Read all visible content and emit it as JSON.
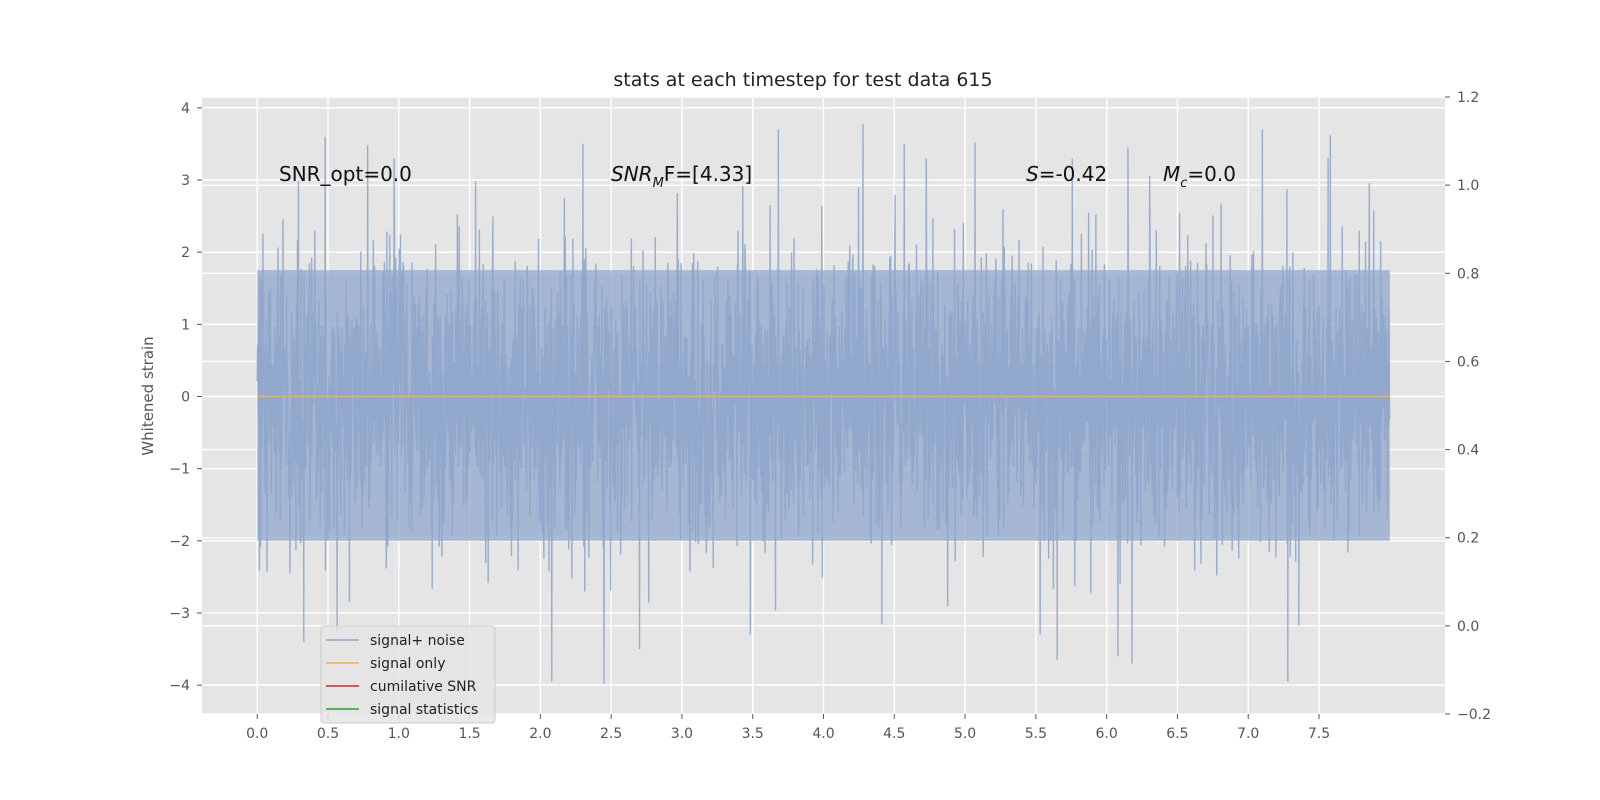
{
  "chart_data": {
    "type": "line",
    "title": "stats at each timestep for test data 615",
    "xlabel": "",
    "ylabel": "Whitened strain",
    "xlim": [
      -0.39,
      8.39
    ],
    "ylim": [
      -4.4,
      4.15
    ],
    "y2lim": [
      -0.2,
      1.2
    ],
    "xticks": [
      "0.0",
      "0.5",
      "1.0",
      "1.5",
      "2.0",
      "2.5",
      "3.0",
      "3.5",
      "4.0",
      "4.5",
      "5.0",
      "5.5",
      "6.0",
      "6.5",
      "7.0",
      "7.5"
    ],
    "yticks": [
      "4",
      "3",
      "2",
      "1",
      "0",
      "−1",
      "−2",
      "−3",
      "−4"
    ],
    "y2ticks": [
      "1.2",
      "1.0",
      "0.8",
      "0.6",
      "0.4",
      "0.2",
      "0.0",
      "−0.2"
    ],
    "grid": true,
    "series": [
      {
        "name": "signal+ noise",
        "color": "#8fa6cb",
        "x_range": [
          0.0,
          8.0
        ],
        "description": "whitened noise, approx 0 mean, range -4 to 4",
        "approx_bounds": [
          -2.0,
          1.75
        ],
        "extreme_peaks": [
          [
            0.48,
            3.6
          ],
          [
            0.78,
            3.48
          ],
          [
            2.3,
            3.5
          ],
          [
            3.68,
            3.7
          ],
          [
            4.28,
            3.78
          ],
          [
            4.57,
            3.5
          ],
          [
            5.07,
            3.52
          ],
          [
            6.15,
            3.45
          ],
          [
            7.1,
            3.7
          ],
          [
            7.58,
            3.62
          ]
        ],
        "extreme_troughs": [
          [
            0.33,
            -3.4
          ],
          [
            2.08,
            -3.95
          ],
          [
            2.45,
            -3.98
          ],
          [
            2.7,
            -3.5
          ],
          [
            5.65,
            -3.65
          ],
          [
            6.08,
            -3.6
          ],
          [
            6.18,
            -3.7
          ],
          [
            7.28,
            -3.95
          ]
        ]
      },
      {
        "name": "signal only",
        "color": "#f0b04b",
        "values": "constant 0"
      },
      {
        "name": "cumilative SNR",
        "color": "#d62728",
        "values": []
      },
      {
        "name": "signal statistics",
        "color": "#2ca02c",
        "values": []
      }
    ],
    "annotations": [
      {
        "text": "SNR_opt=0.0",
        "x": 0.2,
        "y": 2.95
      },
      {
        "text_main": "SNR",
        "text_sub": "M",
        "text_rest": "F=[4.33]",
        "x": 2.6,
        "y": 2.95
      },
      {
        "text_main": "S",
        "text_rest": "=-0.42",
        "x": 5.6,
        "y": 2.95
      },
      {
        "text_main": "M",
        "text_sub": "c",
        "text_rest": "=0.0",
        "x": 6.6,
        "y": 2.95
      }
    ],
    "legend_location": "lower-left"
  }
}
